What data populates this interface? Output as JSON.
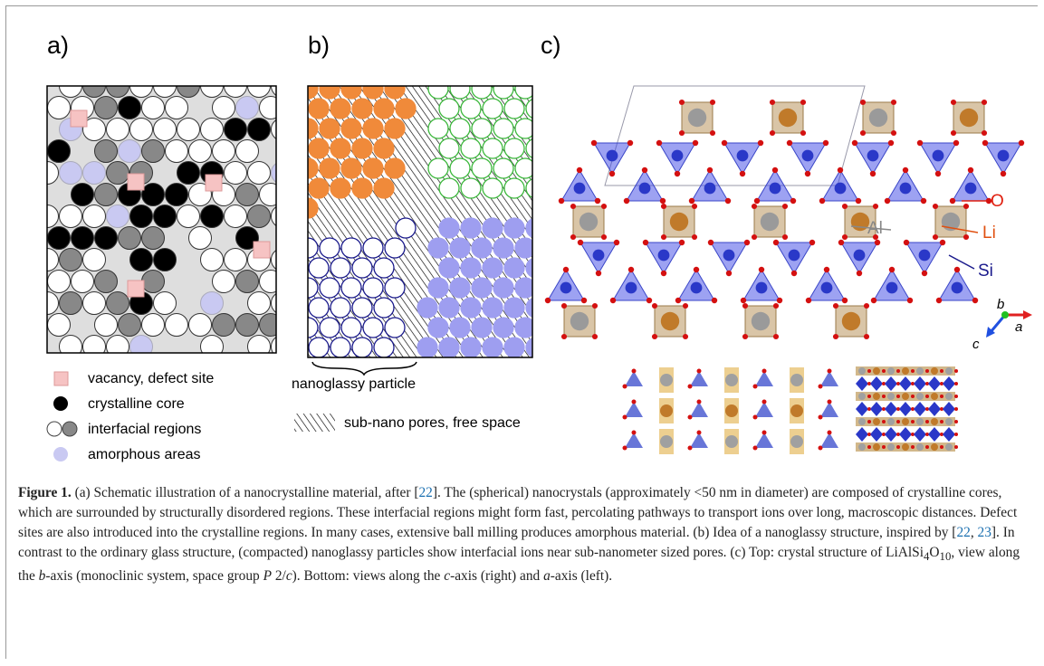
{
  "panels": {
    "a": {
      "label": "a)",
      "legend": [
        "vacancy, defect site",
        "crystalline core",
        "interfacial regions",
        "amorphous areas"
      ]
    },
    "b": {
      "label": "b)",
      "particle_label": "nanoglassy particle",
      "pores_label": "sub-nano pores, free space"
    },
    "c": {
      "label": "c)",
      "atoms": [
        "O",
        "Al",
        "Li",
        "Si"
      ],
      "axes": [
        "b",
        "a",
        "c"
      ]
    }
  },
  "caption": {
    "segments": [
      "Figure 1.",
      " (a) Schematic illustration of a nanocrystalline material, after [",
      "22",
      "]. The (spherical) nanocrystals (approximately <50 nm in diameter) are composed of crystalline cores, which are surrounded by structurally disordered regions. These interfacial regions might form fast, percolating pathways to transport ions over long, macroscopic distances. Defect sites are also introduced into the crystalline regions. In many cases, extensive ball milling produces amorphous material. (b) Idea of a nanoglassy structure, inspired by [",
      "22",
      ", ",
      "23",
      "]. In contrast to the ordinary glass structure, (compacted) nanoglassy particles show interfacial ions near sub-nanometer sized pores. (c) Top: crystal structure of LiAlSi",
      "4",
      "O",
      "10",
      ", view along the ",
      "b",
      "-axis (monoclinic system, space group ",
      "P",
      " 2/",
      "c",
      "). Bottom: views along the ",
      "c",
      "-axis (right) and ",
      "a",
      "-axis (left)."
    ]
  }
}
